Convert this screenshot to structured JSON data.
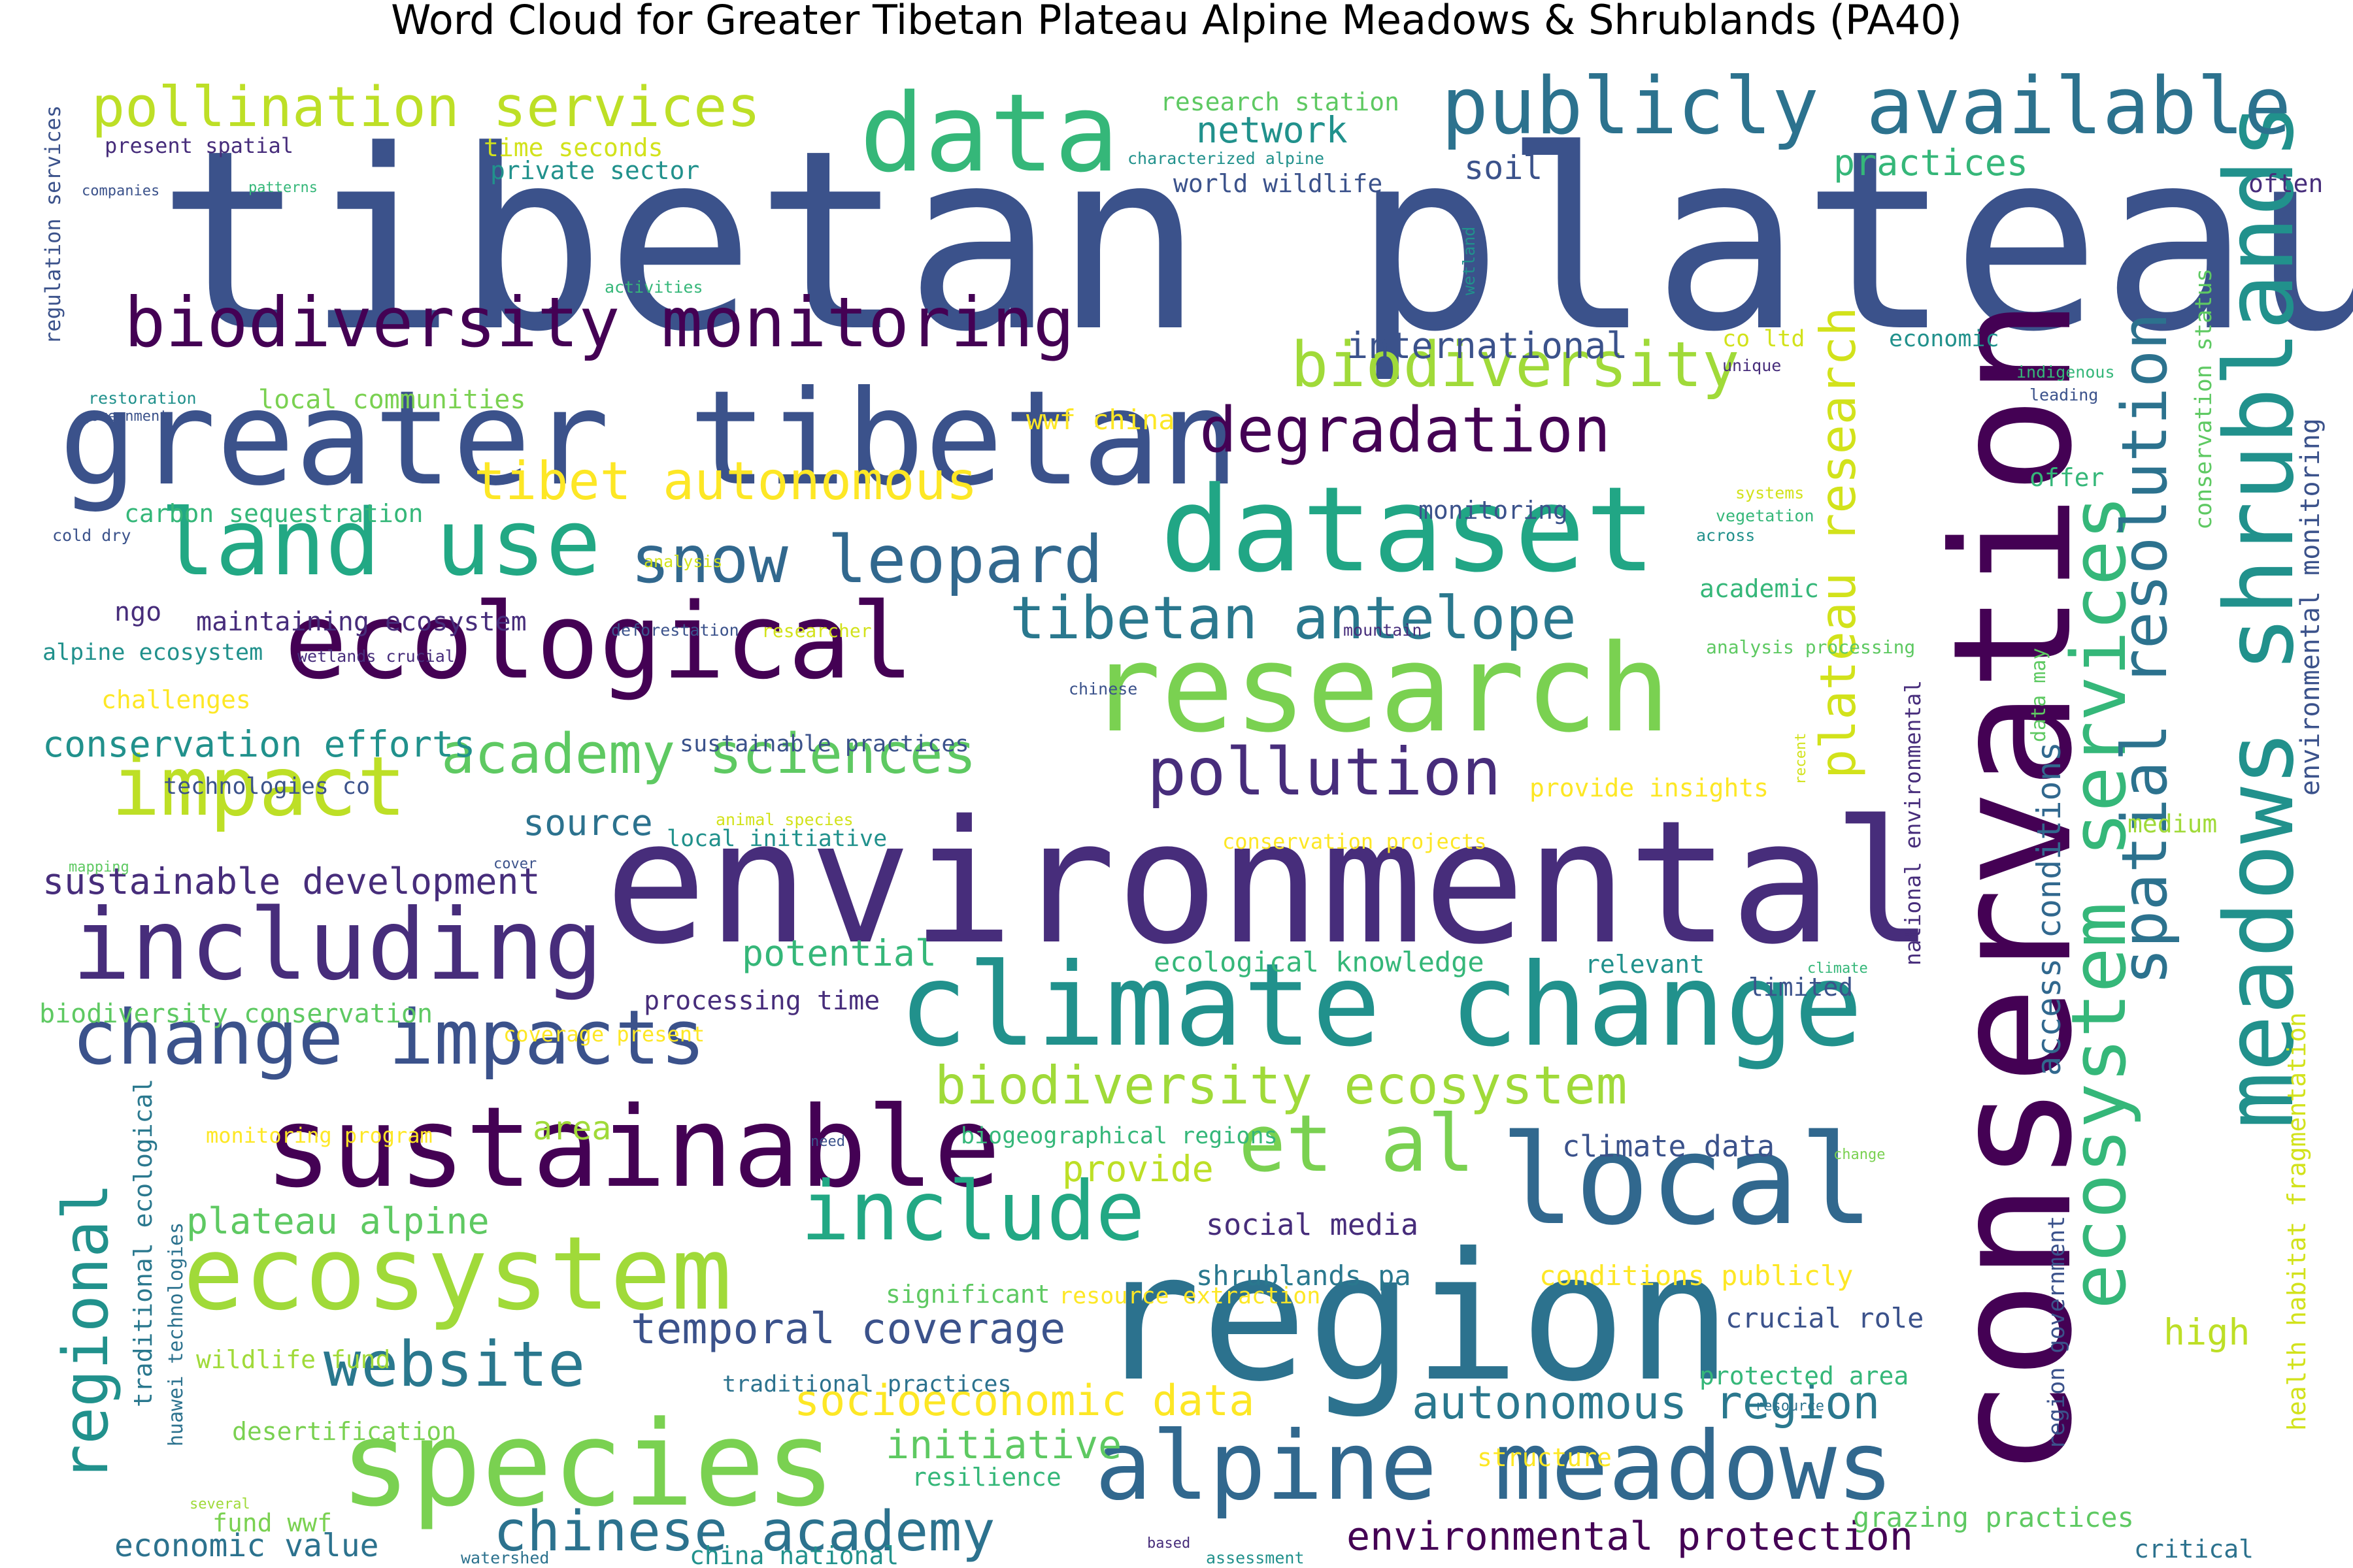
{
  "title": "Word Cloud for Greater Tibetan Plateau Alpine Meadows & Shrublands (PA40)",
  "colors": {
    "background": "#ffffff",
    "palette": "viridis"
  },
  "words": [
    {
      "text": "tibetan plateau",
      "color": "#3b528b"
    },
    {
      "text": "environmental",
      "color": "#472d7b"
    },
    {
      "text": "conservation",
      "color": "#440154"
    },
    {
      "text": "region",
      "color": "#2c728e"
    },
    {
      "text": "greater tibetan",
      "color": "#3b528b"
    },
    {
      "text": "research",
      "color": "#7ad151"
    },
    {
      "text": "climate change",
      "color": "#21918c"
    },
    {
      "text": "ecological",
      "color": "#440154"
    },
    {
      "text": "dataset",
      "color": "#21a685"
    },
    {
      "text": "meadows shrublands",
      "color": "#21918c"
    },
    {
      "text": "species",
      "color": "#7ad151"
    },
    {
      "text": "sustainable",
      "color": "#440154"
    },
    {
      "text": "local",
      "color": "#31688e"
    },
    {
      "text": "ecosystem",
      "color": "#a0da39"
    },
    {
      "text": "including",
      "color": "#472d7b"
    },
    {
      "text": "data",
      "color": "#35b779"
    },
    {
      "text": "impact",
      "color": "#bddf26"
    },
    {
      "text": "alpine meadows",
      "color": "#31688e"
    },
    {
      "text": "publicly available",
      "color": "#2c728e"
    },
    {
      "text": "biodiversity monitoring",
      "color": "#440154"
    },
    {
      "text": "change impacts",
      "color": "#3b528b"
    },
    {
      "text": "land use",
      "color": "#22a884"
    },
    {
      "text": "ecosystem services",
      "color": "#35b779"
    },
    {
      "text": "include",
      "color": "#22a884"
    },
    {
      "text": "spatial resolution",
      "color": "#2c728e"
    },
    {
      "text": "biodiversity",
      "color": "#a0da39"
    },
    {
      "text": "degradation",
      "color": "#440154"
    },
    {
      "text": "snow leopard",
      "color": "#31688e"
    },
    {
      "text": "pollution",
      "color": "#472d7b"
    },
    {
      "text": "et al",
      "color": "#7ad151"
    },
    {
      "text": "tibetan antelope",
      "color": "#2a788e"
    },
    {
      "text": "regional",
      "color": "#21918c"
    },
    {
      "text": "tibet autonomous",
      "color": "#fde725"
    },
    {
      "text": "website",
      "color": "#2a788e"
    },
    {
      "text": "academy sciences",
      "color": "#5ec962"
    },
    {
      "text": "biodiversity ecosystem",
      "color": "#a0da39"
    },
    {
      "text": "pollination services",
      "color": "#bddf26"
    },
    {
      "text": "plateau research",
      "color": "#d2e21b"
    },
    {
      "text": "chinese academy",
      "color": "#2c728e"
    },
    {
      "text": "autonomous region",
      "color": "#2a788e"
    },
    {
      "text": "socioeconomic data",
      "color": "#fde725"
    },
    {
      "text": "temporal coverage",
      "color": "#3b528b"
    },
    {
      "text": "environmental protection",
      "color": "#440154"
    },
    {
      "text": "initiative",
      "color": "#5ec962"
    },
    {
      "text": "access conditions",
      "color": "#31688e"
    },
    {
      "text": "sustainable development",
      "color": "#472d7b"
    },
    {
      "text": "conservation efforts",
      "color": "#21918c"
    },
    {
      "text": "plateau alpine",
      "color": "#5ec962"
    },
    {
      "text": "international",
      "color": "#3b528b"
    },
    {
      "text": "network",
      "color": "#21918c"
    },
    {
      "text": "potential",
      "color": "#35b779"
    },
    {
      "text": "source",
      "color": "#2c728e"
    },
    {
      "text": "provide",
      "color": "#bddf26"
    },
    {
      "text": "area",
      "color": "#a0da39"
    },
    {
      "text": "high",
      "color": "#bddf26"
    },
    {
      "text": "soil",
      "color": "#3b528b"
    },
    {
      "text": "practices",
      "color": "#35b779"
    },
    {
      "text": "environmental monitoring",
      "color": "#3b528b"
    },
    {
      "text": "health habitat fragmentation",
      "color": "#d2e21b"
    },
    {
      "text": "conservation status",
      "color": "#5ec962"
    },
    {
      "text": "traditional ecological",
      "color": "#2a788e"
    },
    {
      "text": "region government",
      "color": "#3b528b"
    },
    {
      "text": "national environmental",
      "color": "#472d7b"
    },
    {
      "text": "climate data",
      "color": "#3b528b"
    },
    {
      "text": "social media",
      "color": "#472d7b"
    },
    {
      "text": "shrublands pa",
      "color": "#2a788e"
    },
    {
      "text": "conditions publicly",
      "color": "#fde725"
    },
    {
      "text": "crucial role",
      "color": "#3b528b"
    },
    {
      "text": "protected area",
      "color": "#35b779"
    },
    {
      "text": "grazing practices",
      "color": "#5ec962"
    },
    {
      "text": "economic value",
      "color": "#2c728e"
    },
    {
      "text": "ecological knowledge",
      "color": "#35b779"
    },
    {
      "text": "processing time",
      "color": "#472d7b"
    },
    {
      "text": "biodiversity conservation",
      "color": "#5ec962"
    },
    {
      "text": "local communities",
      "color": "#7ad151"
    },
    {
      "text": "carbon sequestration",
      "color": "#35b779"
    },
    {
      "text": "maintaining ecosystem",
      "color": "#472d7b"
    },
    {
      "text": "alpine ecosystem",
      "color": "#21918c"
    },
    {
      "text": "technologies co",
      "color": "#3b528b"
    },
    {
      "text": "sustainable practices",
      "color": "#3b528b"
    },
    {
      "text": "local initiative",
      "color": "#21918c"
    },
    {
      "text": "conservation projects",
      "color": "#fde725"
    },
    {
      "text": "provide insights",
      "color": "#fde725"
    },
    {
      "text": "wwf china",
      "color": "#fde725"
    },
    {
      "text": "private sector",
      "color": "#21918c"
    },
    {
      "text": "time seconds",
      "color": "#d2e21b"
    },
    {
      "text": "research station",
      "color": "#5ec962"
    },
    {
      "text": "world wildlife",
      "color": "#3b528b"
    },
    {
      "text": "present spatial",
      "color": "#472d7b"
    },
    {
      "text": "regulation services",
      "color": "#3b528b"
    },
    {
      "text": "co ltd",
      "color": "#d2e21b"
    },
    {
      "text": "economic",
      "color": "#21918c"
    },
    {
      "text": "monitoring",
      "color": "#3b528b"
    },
    {
      "text": "offer",
      "color": "#35b779"
    },
    {
      "text": "academic",
      "color": "#35b779"
    },
    {
      "text": "ngo",
      "color": "#472d7b"
    },
    {
      "text": "challenges",
      "color": "#fde725"
    },
    {
      "text": "medium",
      "color": "#a0da39"
    },
    {
      "text": "relevant",
      "color": "#21918c"
    },
    {
      "text": "limited",
      "color": "#3b528b"
    },
    {
      "text": "often",
      "color": "#472d7b"
    },
    {
      "text": "significant",
      "color": "#5ec962"
    },
    {
      "text": "resource extraction",
      "color": "#fde725"
    },
    {
      "text": "traditional practices",
      "color": "#2c728e"
    },
    {
      "text": "wildlife fund",
      "color": "#a0da39"
    },
    {
      "text": "desertification",
      "color": "#7ad151"
    },
    {
      "text": "resilience",
      "color": "#35b779"
    },
    {
      "text": "structure",
      "color": "#fde725"
    },
    {
      "text": "fund wwf",
      "color": "#7ad151"
    },
    {
      "text": "china national",
      "color": "#21918c"
    },
    {
      "text": "critical",
      "color": "#2c728e"
    },
    {
      "text": "huawei technologies",
      "color": "#2c728e"
    },
    {
      "text": "biogeographical regions",
      "color": "#35b779"
    },
    {
      "text": "monitoring program",
      "color": "#fde725"
    },
    {
      "text": "coverage present",
      "color": "#fde725"
    },
    {
      "text": "data may",
      "color": "#5ec962"
    },
    {
      "text": "analysis processing",
      "color": "#5ec962"
    },
    {
      "text": "characterized alpine",
      "color": "#21918c"
    },
    {
      "text": "companies",
      "color": "#3b528b"
    },
    {
      "text": "patterns",
      "color": "#35b779"
    },
    {
      "text": "activities",
      "color": "#35b779"
    },
    {
      "text": "restoration",
      "color": "#21918c"
    },
    {
      "text": "government",
      "color": "#3b528b"
    },
    {
      "text": "cold dry",
      "color": "#3b528b"
    },
    {
      "text": "analysis",
      "color": "#d2e21b"
    },
    {
      "text": "deforestation",
      "color": "#3b528b"
    },
    {
      "text": "researcher",
      "color": "#d2e21b"
    },
    {
      "text": "wetlands crucial",
      "color": "#472d7b"
    },
    {
      "text": "mountain",
      "color": "#472d7b"
    },
    {
      "text": "chinese",
      "color": "#3b528b"
    },
    {
      "text": "animal species",
      "color": "#d2e21b"
    },
    {
      "text": "mapping",
      "color": "#5ec962"
    },
    {
      "text": "cover",
      "color": "#3b528b"
    },
    {
      "text": "wetland",
      "color": "#21918c"
    },
    {
      "text": "unique",
      "color": "#472d7b"
    },
    {
      "text": "indigenous",
      "color": "#35b779"
    },
    {
      "text": "leading",
      "color": "#3b528b"
    },
    {
      "text": "systems",
      "color": "#d2e21b"
    },
    {
      "text": "vegetation",
      "color": "#35b779"
    },
    {
      "text": "across",
      "color": "#21918c"
    },
    {
      "text": "recent",
      "color": "#d2e21b"
    },
    {
      "text": "climate",
      "color": "#35b779"
    },
    {
      "text": "change",
      "color": "#7ad151"
    },
    {
      "text": "need",
      "color": "#3b528b"
    },
    {
      "text": "several",
      "color": "#a0da39"
    },
    {
      "text": "watershed",
      "color": "#2c728e"
    },
    {
      "text": "based",
      "color": "#472d7b"
    },
    {
      "text": "assessment",
      "color": "#21918c"
    },
    {
      "text": "resource",
      "color": "#2c728e"
    }
  ]
}
